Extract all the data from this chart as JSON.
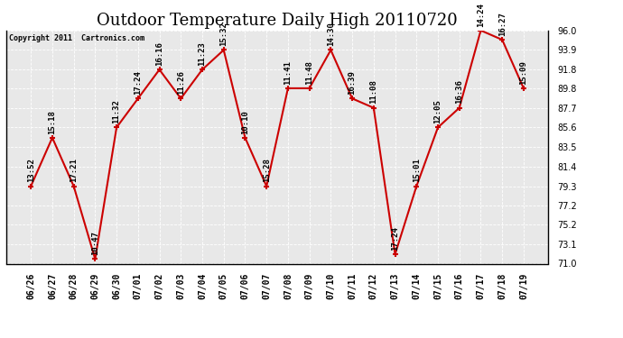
{
  "title": "Outdoor Temperature Daily High 20110720",
  "copyright": "Copyright 2011  Cartronics.com",
  "dates": [
    "06/26",
    "06/27",
    "06/28",
    "06/29",
    "06/30",
    "07/01",
    "07/02",
    "07/03",
    "07/04",
    "07/05",
    "07/06",
    "07/07",
    "07/08",
    "07/09",
    "07/10",
    "07/11",
    "07/12",
    "07/13",
    "07/14",
    "07/15",
    "07/16",
    "07/17",
    "07/18",
    "07/19"
  ],
  "times": [
    "13:52",
    "15:18",
    "17:21",
    "10:47",
    "11:32",
    "17:24",
    "16:16",
    "11:26",
    "11:23",
    "15:32",
    "10:10",
    "15:28",
    "11:41",
    "11:48",
    "14:30",
    "16:39",
    "11:08",
    "17:24",
    "15:01",
    "12:05",
    "16:36",
    "14:24",
    "16:27",
    "15:09"
  ],
  "values": [
    79.3,
    84.5,
    79.3,
    71.5,
    85.6,
    88.7,
    91.8,
    88.7,
    91.8,
    93.9,
    84.5,
    79.3,
    89.8,
    89.8,
    93.9,
    88.7,
    87.7,
    72.0,
    79.3,
    85.6,
    87.7,
    96.0,
    95.0,
    89.8
  ],
  "ylim": [
    71.0,
    96.0
  ],
  "yticks": [
    71.0,
    73.1,
    75.2,
    77.2,
    79.3,
    81.4,
    83.5,
    85.6,
    87.7,
    89.8,
    91.8,
    93.9,
    96.0
  ],
  "line_color": "#cc0000",
  "marker_color": "#cc0000",
  "plot_bg_color": "#e8e8e8",
  "fig_bg_color": "#ffffff",
  "grid_color": "#ffffff",
  "title_fontsize": 13,
  "tick_fontsize": 7,
  "annot_fontsize": 6.5,
  "copyright_fontsize": 6
}
